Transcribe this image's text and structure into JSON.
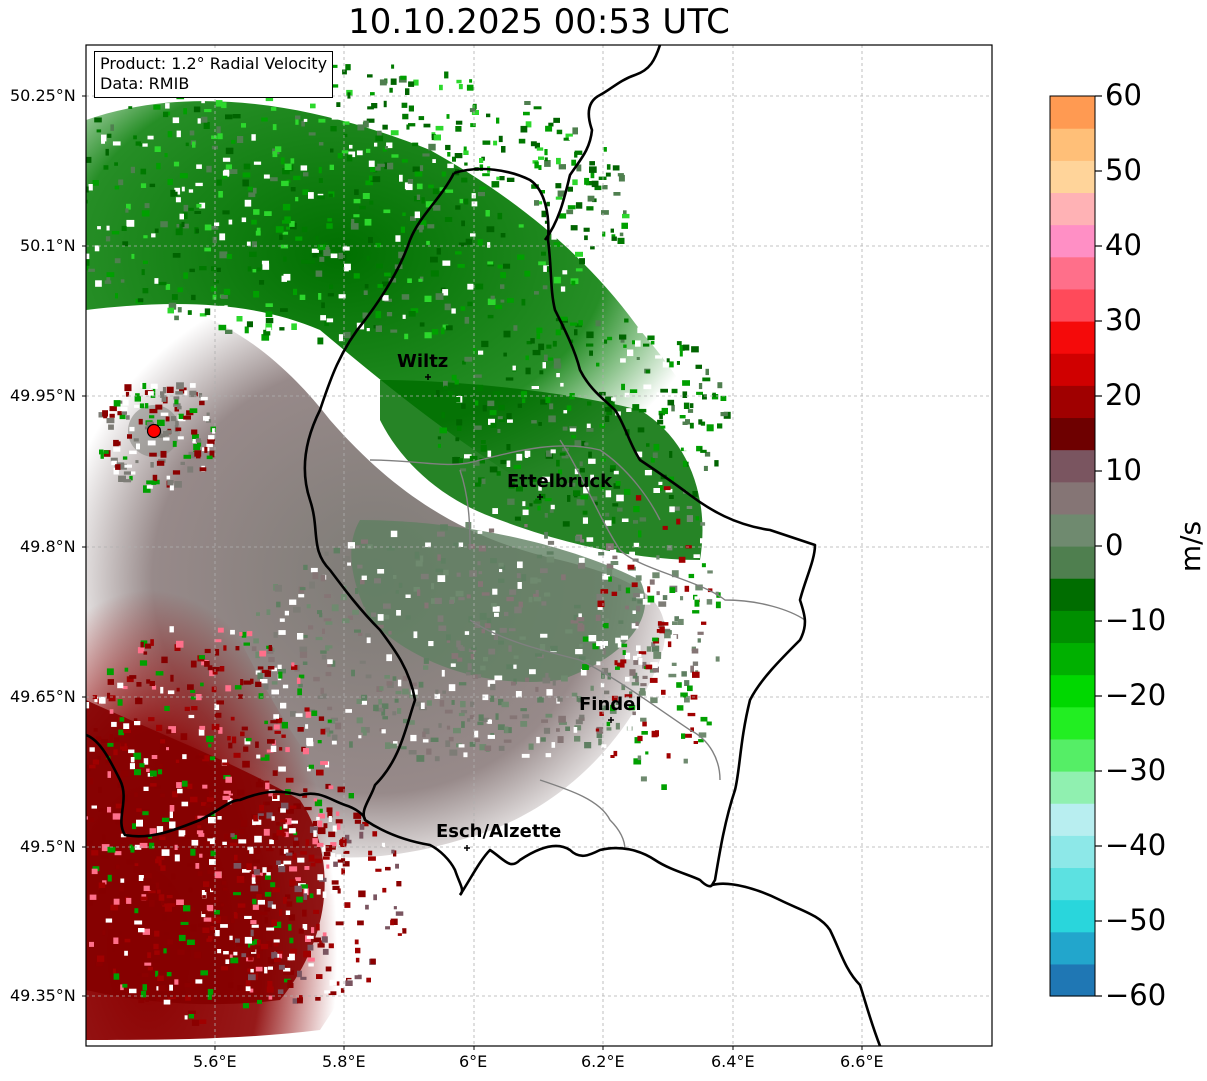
{
  "title": "10.10.2025 00:53 UTC",
  "info": {
    "product": "Product: 1.2° Radial Velocity",
    "data": "Data: RMIB"
  },
  "axes": {
    "lat_ticks": [
      "50.25°N",
      "50.1°N",
      "49.95°N",
      "49.8°N",
      "49.65°N",
      "49.5°N",
      "49.35°N"
    ],
    "lon_ticks": [
      "5.6°E",
      "5.8°E",
      "6°E",
      "6.2°E",
      "6.4°E",
      "6.6°E"
    ],
    "lat_range": [
      49.3,
      50.3
    ],
    "lon_range": [
      5.4,
      6.8
    ],
    "grid": true
  },
  "radar_site": {
    "lon": 5.505,
    "lat": 49.914,
    "color": "#ff0000"
  },
  "cities": [
    {
      "name": "Wiltz",
      "lon": 5.93,
      "lat": 49.967
    },
    {
      "name": "Ettelbruck",
      "lon": 6.1,
      "lat": 49.848
    },
    {
      "name": "Findel",
      "lon": 6.21,
      "lat": 49.626
    },
    {
      "name": "Esch/Alzette",
      "lon": 5.98,
      "lat": 49.498
    }
  ],
  "colorbar": {
    "label": "m/s",
    "min": -60,
    "max": 60,
    "ticks": [
      "60",
      "50",
      "40",
      "30",
      "20",
      "10",
      "0",
      "−10",
      "−20",
      "−30",
      "−40",
      "−50",
      "−60"
    ],
    "colors": [
      "#1f77b4",
      "#22a6cc",
      "#29d6dc",
      "#5ce1e1",
      "#8de8e8",
      "#b8eef0",
      "#90f0b0",
      "#55ee66",
      "#22ee22",
      "#00d800",
      "#00b000",
      "#008f00",
      "#006d00",
      "#4f7f4f",
      "#6f8a6f",
      "#857575",
      "#7a5560",
      "#6e0000",
      "#a00000",
      "#d00000",
      "#f50a0a",
      "#ff4a5a",
      "#ff6f8a",
      "#ff8fc5",
      "#ffb2b5",
      "#ffd49a",
      "#ffbf78",
      "#ff9a52"
    ]
  },
  "chart_data": {
    "type": "heatmap",
    "title": "10.10.2025 00:53 UTC",
    "xlabel": "",
    "ylabel": "",
    "value_label": "m/s",
    "value_range": [
      -60,
      60
    ],
    "regions": [
      {
        "area": "north (north of radar, around Wiltz)",
        "velocity_ms": -12
      },
      {
        "area": "center-east (Ettelbruck)",
        "velocity_ms": -10
      },
      {
        "area": "center",
        "velocity_ms": 0
      },
      {
        "area": "south-southeast",
        "velocity_ms": 4
      },
      {
        "area": "southwest",
        "velocity_ms": 12
      }
    ]
  }
}
